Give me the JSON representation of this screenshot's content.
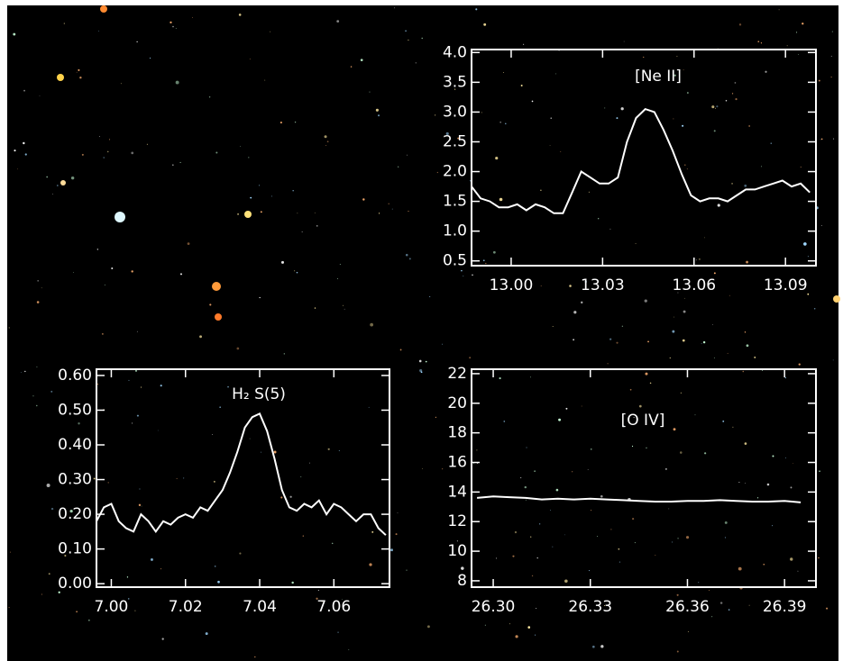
{
  "chart_data": [
    {
      "type": "line",
      "title": "[Ne II]",
      "x": [
        12.987,
        12.99,
        12.993,
        12.996,
        12.999,
        13.002,
        13.005,
        13.008,
        13.011,
        13.014,
        13.017,
        13.02,
        13.023,
        13.026,
        13.029,
        13.032,
        13.035,
        13.038,
        13.041,
        13.044,
        13.047,
        13.05,
        13.053,
        13.056,
        13.059,
        13.062,
        13.065,
        13.068,
        13.071,
        13.074,
        13.077,
        13.08,
        13.083,
        13.086,
        13.089,
        13.092,
        13.095,
        13.098
      ],
      "values": [
        1.75,
        1.55,
        1.5,
        1.4,
        1.4,
        1.45,
        1.35,
        1.45,
        1.4,
        1.3,
        1.3,
        1.65,
        2.0,
        1.9,
        1.8,
        1.8,
        1.9,
        2.5,
        2.9,
        3.05,
        3.0,
        2.7,
        2.35,
        1.95,
        1.6,
        1.5,
        1.55,
        1.55,
        1.5,
        1.6,
        1.7,
        1.7,
        1.75,
        1.8,
        1.85,
        1.75,
        1.8,
        1.65
      ],
      "color": "#ffffff",
      "xlim": [
        12.987,
        13.1
      ],
      "xticks": [
        {
          "value": 13,
          "label": "13.00"
        },
        13.03,
        13.06,
        13.09
      ],
      "ylim": [
        0.42,
        4.05
      ],
      "yticks": [
        0.5,
        {
          "value": 1,
          "label": "1.0"
        },
        1.5,
        {
          "value": 2,
          "label": "2.0"
        },
        2.5,
        {
          "value": 3,
          "label": "3.0"
        },
        3.5,
        {
          "value": 4,
          "label": "4.0"
        }
      ]
    },
    {
      "type": "line",
      "title": "H₂ S(5)",
      "x": [
        6.996,
        6.998,
        7.0,
        7.002,
        7.004,
        7.006,
        7.008,
        7.01,
        7.012,
        7.014,
        7.016,
        7.018,
        7.02,
        7.022,
        7.024,
        7.026,
        7.028,
        7.03,
        7.032,
        7.034,
        7.036,
        7.038,
        7.04,
        7.042,
        7.044,
        7.046,
        7.048,
        7.05,
        7.052,
        7.054,
        7.056,
        7.058,
        7.06,
        7.062,
        7.064,
        7.066,
        7.068,
        7.07,
        7.072,
        7.074
      ],
      "values": [
        0.18,
        0.22,
        0.23,
        0.18,
        0.16,
        0.15,
        0.2,
        0.18,
        0.15,
        0.18,
        0.17,
        0.19,
        0.2,
        0.19,
        0.22,
        0.21,
        0.24,
        0.27,
        0.32,
        0.38,
        0.45,
        0.48,
        0.49,
        0.44,
        0.36,
        0.27,
        0.22,
        0.21,
        0.23,
        0.22,
        0.24,
        0.2,
        0.23,
        0.22,
        0.2,
        0.18,
        0.2,
        0.2,
        0.16,
        0.14
      ],
      "color": "#ffffff",
      "xlim": [
        6.996,
        7.075
      ],
      "xticks": [
        {
          "value": 7,
          "label": "7.00"
        },
        7.02,
        7.04,
        7.06
      ],
      "ylim": [
        -0.01,
        0.618
      ],
      "yticks": [
        {
          "value": 0,
          "label": "0.00"
        },
        {
          "value": 0.1,
          "label": "0.10"
        },
        {
          "value": 0.2,
          "label": "0.20"
        },
        {
          "value": 0.3,
          "label": "0.30"
        },
        {
          "value": 0.4,
          "label": "0.40"
        },
        {
          "value": 0.5,
          "label": "0.50"
        },
        {
          "value": 0.6,
          "label": "0.60"
        }
      ]
    },
    {
      "type": "line",
      "title": "[O IV]",
      "x": [
        26.295,
        26.3,
        26.305,
        26.31,
        26.315,
        26.32,
        26.325,
        26.33,
        26.335,
        26.34,
        26.345,
        26.35,
        26.355,
        26.36,
        26.365,
        26.37,
        26.375,
        26.38,
        26.385,
        26.39,
        26.395
      ],
      "values": [
        13.6,
        13.7,
        13.65,
        13.6,
        13.5,
        13.55,
        13.5,
        13.55,
        13.5,
        13.45,
        13.4,
        13.35,
        13.35,
        13.4,
        13.4,
        13.45,
        13.4,
        13.35,
        13.35,
        13.4,
        13.3
      ],
      "color": "#ffffff",
      "xlim": [
        26.2933,
        26.3997
      ],
      "xticks": [
        {
          "value": 26.3,
          "label": "26.30"
        },
        26.33,
        26.36,
        26.39
      ],
      "ylim": [
        7.57,
        22.3
      ],
      "yticks": [
        8,
        10,
        12,
        14,
        16,
        18,
        20,
        22
      ]
    }
  ]
}
